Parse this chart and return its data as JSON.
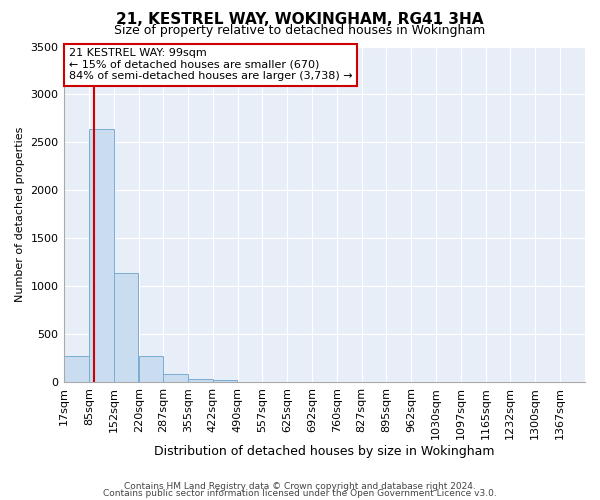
{
  "title": "21, KESTREL WAY, WOKINGHAM, RG41 3HA",
  "subtitle": "Size of property relative to detached houses in Wokingham",
  "xlabel": "Distribution of detached houses by size in Wokingham",
  "ylabel": "Number of detached properties",
  "bar_labels": [
    "17sqm",
    "85sqm",
    "152sqm",
    "220sqm",
    "287sqm",
    "355sqm",
    "422sqm",
    "490sqm",
    "557sqm",
    "625sqm",
    "692sqm",
    "760sqm",
    "827sqm",
    "895sqm",
    "962sqm",
    "1030sqm",
    "1097sqm",
    "1165sqm",
    "1232sqm",
    "1300sqm",
    "1367sqm"
  ],
  "bar_heights": [
    270,
    2640,
    1140,
    275,
    85,
    35,
    20,
    0,
    0,
    0,
    0,
    0,
    0,
    0,
    0,
    0,
    0,
    0,
    0,
    0,
    0
  ],
  "bar_color": "#c9dcf0",
  "bar_edge_color": "#7aadd4",
  "ylim": [
    0,
    3500
  ],
  "yticks": [
    0,
    500,
    1000,
    1500,
    2000,
    2500,
    3000,
    3500
  ],
  "property_line_x": 99,
  "property_line_color": "#cc0000",
  "annotation_title": "21 KESTREL WAY: 99sqm",
  "annotation_line1": "← 15% of detached houses are smaller (670)",
  "annotation_line2": "84% of semi-detached houses are larger (3,738) →",
  "annotation_box_color": "#cc0000",
  "footer_line1": "Contains HM Land Registry data © Crown copyright and database right 2024.",
  "footer_line2": "Contains public sector information licensed under the Open Government Licence v3.0.",
  "bin_edges": [
    17,
    85,
    152,
    220,
    287,
    355,
    422,
    490,
    557,
    625,
    692,
    760,
    827,
    895,
    962,
    1030,
    1097,
    1165,
    1232,
    1300,
    1367
  ],
  "bin_width": 67,
  "background_color": "#e8eef8",
  "grid_color": "#ffffff",
  "title_fontsize": 11,
  "subtitle_fontsize": 9,
  "ylabel_fontsize": 8,
  "xlabel_fontsize": 9,
  "tick_fontsize": 8,
  "annotation_fontsize": 8,
  "footer_fontsize": 6.5
}
